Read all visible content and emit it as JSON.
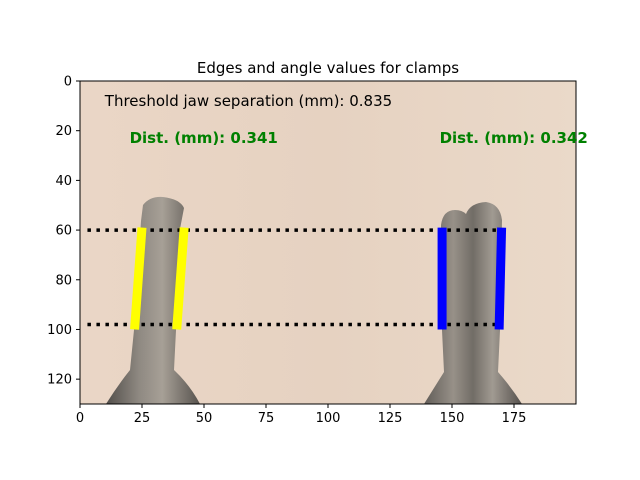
{
  "chart_data": {
    "type": "image",
    "title": "Edges and angle values for clamps",
    "xlim": [
      0,
      200
    ],
    "ylim": [
      130,
      0
    ],
    "xticks": [
      0,
      25,
      50,
      75,
      100,
      125,
      150,
      175
    ],
    "yticks": [
      0,
      20,
      40,
      60,
      80,
      100,
      120
    ],
    "grid": false,
    "annotations": [
      {
        "text": "Threshold jaw separation (mm): 0.835",
        "x": 10,
        "y": 8,
        "color": "#000000"
      },
      {
        "text": "Dist. (mm): 0.341",
        "x": 20,
        "y": 23,
        "color": "#008000"
      },
      {
        "text": "Dist. (mm): 0.342",
        "x": 145,
        "y": 23,
        "color": "#008000"
      }
    ],
    "reference_lines": [
      {
        "y": 60,
        "x_range": [
          3,
          170
        ],
        "style": "dotted",
        "color": "#000000"
      },
      {
        "y": 98,
        "x_range": [
          3,
          170
        ],
        "style": "dotted",
        "color": "#000000"
      }
    ],
    "edge_segments": [
      {
        "clamp": "left",
        "edge": "left",
        "x1": 25,
        "y1": 59,
        "x2": 22,
        "y2": 100,
        "color": "#ffff00"
      },
      {
        "clamp": "left",
        "edge": "right",
        "x1": 42,
        "y1": 59,
        "x2": 39,
        "y2": 100,
        "color": "#ffff00"
      },
      {
        "clamp": "right",
        "edge": "left",
        "x1": 146,
        "y1": 59,
        "x2": 146,
        "y2": 100,
        "color": "#0000ff"
      },
      {
        "clamp": "right",
        "edge": "right",
        "x1": 170,
        "y1": 59,
        "x2": 169,
        "y2": 100,
        "color": "#0000ff"
      }
    ]
  },
  "colors": {
    "background_image": "#e8d5c4",
    "clamp_metal": "#6e6a64",
    "text_green": "#008000"
  }
}
